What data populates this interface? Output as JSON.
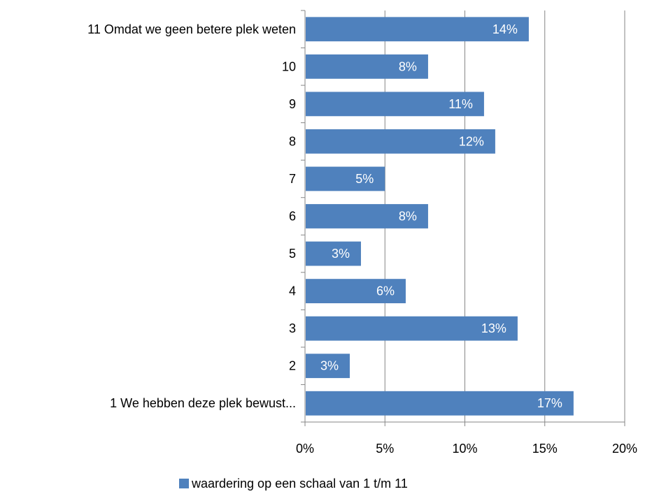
{
  "chart_data": {
    "type": "bar",
    "orientation": "horizontal",
    "categories": [
      "11 Omdat we geen betere plek weten",
      "10",
      "9",
      "8",
      "7",
      "6",
      "5",
      "4",
      "3",
      "2",
      "1 We hebben deze plek bewust..."
    ],
    "values": [
      14,
      7.7,
      11.2,
      11.9,
      5,
      7.7,
      3.5,
      6.3,
      13.3,
      2.8,
      16.8
    ],
    "value_labels": [
      "14%",
      "8%",
      "11%",
      "12%",
      "5%",
      "8%",
      "3%",
      "6%",
      "13%",
      "3%",
      "17%"
    ],
    "x_ticks": [
      "0%",
      "5%",
      "10%",
      "15%",
      "20%"
    ],
    "xlim": [
      0,
      20
    ],
    "grid": true,
    "legend_position": "bottom",
    "series": [
      {
        "name": "waardering op een schaal van 1 t/m 11",
        "color": "#4f81bd"
      }
    ]
  }
}
